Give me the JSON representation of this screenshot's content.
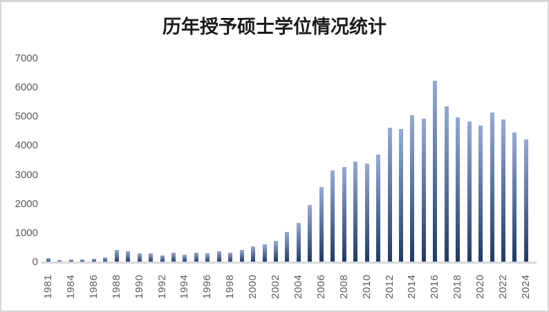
{
  "chart_data": {
    "type": "bar",
    "title": "历年授予硕士学位情况统计",
    "categories": [
      1981,
      1983,
      1984,
      1985,
      1986,
      1987,
      1988,
      1989,
      1990,
      1991,
      1992,
      1993,
      1994,
      1995,
      1996,
      1997,
      1998,
      1999,
      2000,
      2001,
      2002,
      2003,
      2004,
      2005,
      2006,
      2007,
      2008,
      2009,
      2010,
      2011,
      2012,
      2013,
      2014,
      2015,
      2016,
      2017,
      2018,
      2019,
      2020,
      2021,
      2022,
      2023,
      2024
    ],
    "values": [
      150,
      70,
      100,
      100,
      120,
      170,
      420,
      380,
      310,
      310,
      240,
      325,
      270,
      325,
      310,
      390,
      340,
      430,
      540,
      620,
      745,
      1040,
      1360,
      1970,
      2590,
      3150,
      3265,
      3460,
      3390,
      3705,
      4625,
      4590,
      5050,
      4945,
      6230,
      5355,
      4975,
      4840,
      4710,
      5160,
      4905,
      4470,
      4235
    ],
    "x_tick_labels": [
      "1981",
      "1984",
      "1986",
      "1988",
      "1990",
      "1992",
      "1994",
      "1996",
      "1998",
      "2000",
      "2002",
      "2004",
      "2006",
      "2008",
      "2010",
      "2012",
      "2014",
      "2016",
      "2018",
      "2020",
      "2022",
      "2024"
    ],
    "x_tick_every_n_bars": 2,
    "y_ticks": [
      0,
      1000,
      2000,
      3000,
      4000,
      5000,
      6000,
      7000
    ],
    "ylim": [
      0,
      7000
    ],
    "xlabel": "",
    "ylabel": "",
    "grid": false,
    "legend_position": "none",
    "colors": {
      "bar_gradient_top": "#94abd7",
      "bar_gradient_bottom": "#203a66",
      "axis_label": "#595959",
      "axis_line": "#d9d9d9",
      "title": "#1a1a1a",
      "frame_border": "#d6d6d6",
      "background": "#ffffff"
    }
  }
}
